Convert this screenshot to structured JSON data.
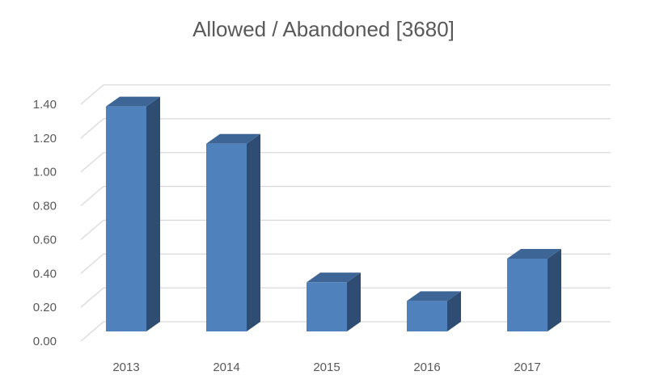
{
  "chart_data": {
    "type": "bar",
    "title": "Allowed / Abandoned [3680]",
    "xlabel": "",
    "ylabel": "",
    "categories": [
      "2013",
      "2014",
      "2015",
      "2016",
      "2017"
    ],
    "values": [
      1.33,
      1.11,
      0.29,
      0.18,
      0.43
    ],
    "ylim": [
      0,
      1.4
    ],
    "yticks": [
      "0.00",
      "0.20",
      "0.40",
      "0.60",
      "0.80",
      "1.00",
      "1.20",
      "1.40"
    ],
    "grid": true,
    "legend": "none",
    "style": "3d-column"
  },
  "colors": {
    "bar_front": "#4f81bd",
    "bar_side": "#2f4d73",
    "bar_top": "#3d6696",
    "grid": "#d9d9d9",
    "text": "#595959"
  }
}
